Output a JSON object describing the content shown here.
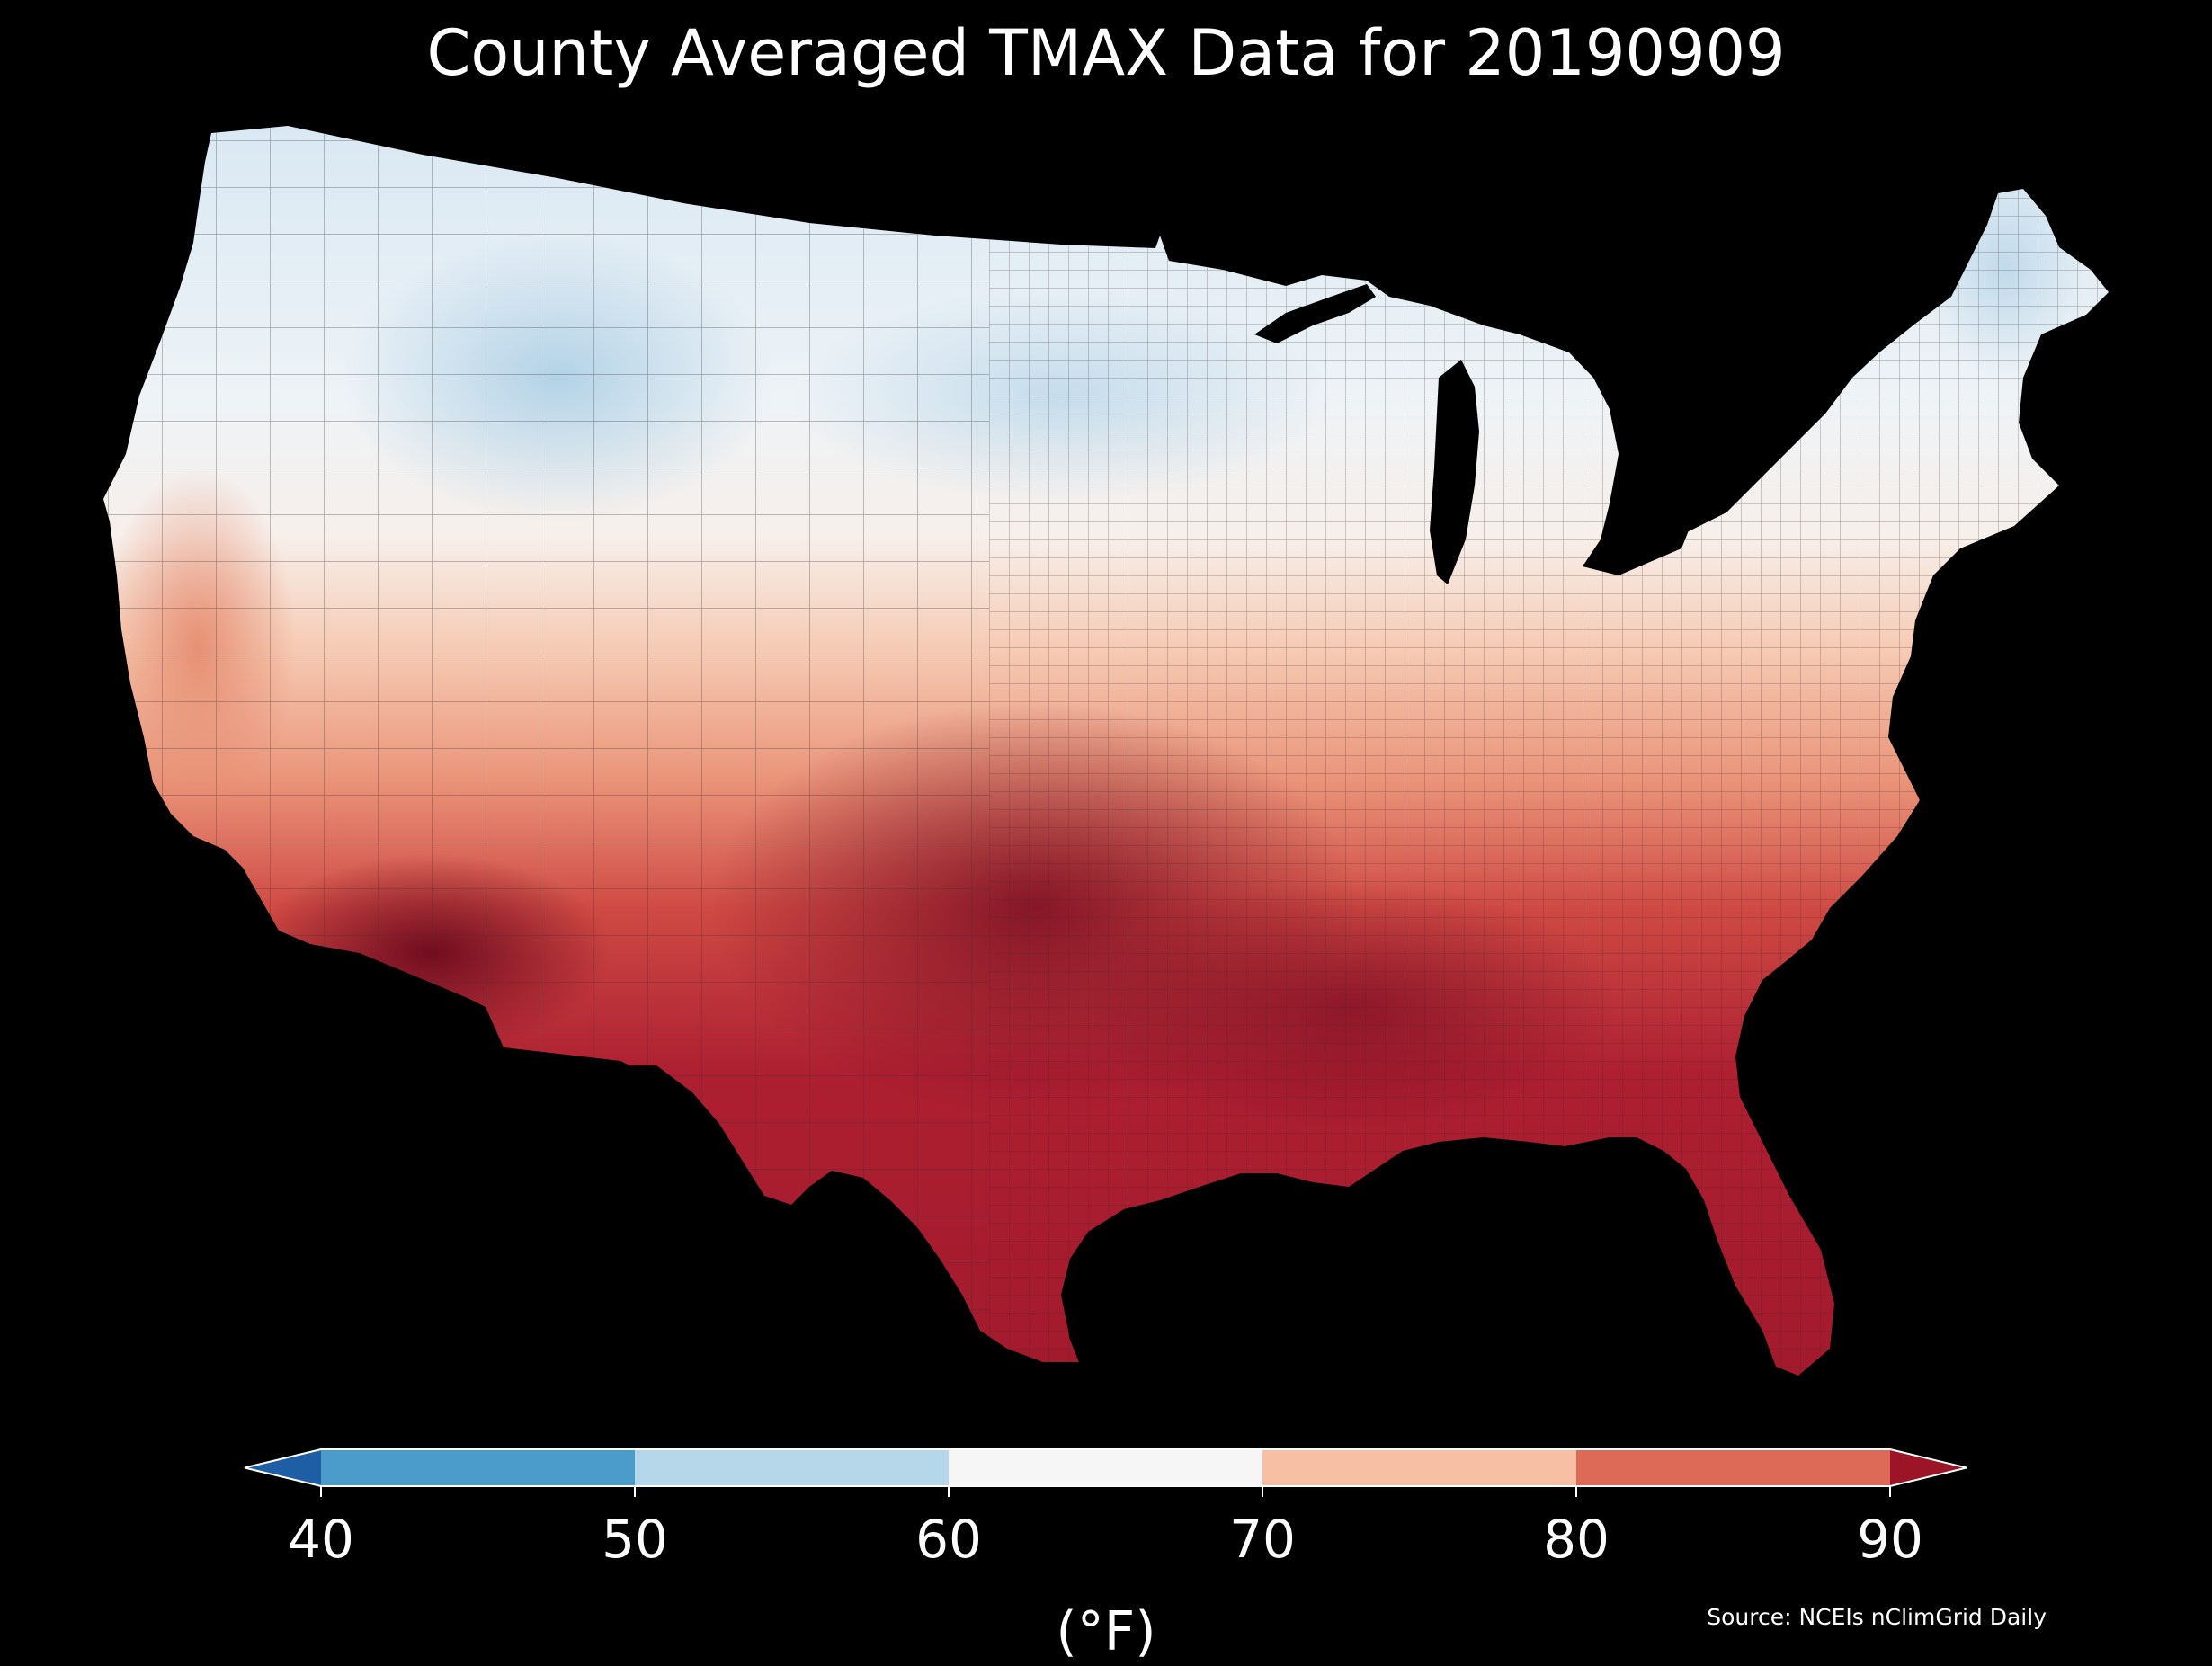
{
  "title": "County Averaged TMAX Data for 20190909",
  "source": "Source: NCEIs nClimGrid Daily",
  "legend": {
    "unit": "(°F)",
    "ticks": [
      "40",
      "50",
      "60",
      "70",
      "80",
      "90"
    ],
    "tick_values": [
      40,
      50,
      60,
      70,
      80,
      90
    ],
    "bins": [
      {
        "from": 40,
        "to": 50,
        "color": "#4b9bcb"
      },
      {
        "from": 50,
        "to": 60,
        "color": "#b6d7ea"
      },
      {
        "from": 60,
        "to": 70,
        "color": "#f6f6f6"
      },
      {
        "from": 70,
        "to": 80,
        "color": "#f7bfa3"
      },
      {
        "from": 80,
        "to": 90,
        "color": "#dc6a57"
      }
    ],
    "under_color": "#1e5ea5",
    "over_color": "#9c1526"
  },
  "map": {
    "region": "contiguous-united-states",
    "background": "#000000",
    "water_color": "#000000",
    "border_color": "#333333",
    "color_bands": [
      {
        "name": "northern-cool",
        "color": "#d6e6f2"
      },
      {
        "name": "mid-mild",
        "color": "#f6f6f6"
      },
      {
        "name": "central-warm",
        "color": "#f3c1a8"
      },
      {
        "name": "southern-warm",
        "color": "#e27a63"
      },
      {
        "name": "south-hot",
        "color": "#c02a33"
      },
      {
        "name": "core-hot",
        "color": "#8c1226"
      }
    ]
  }
}
